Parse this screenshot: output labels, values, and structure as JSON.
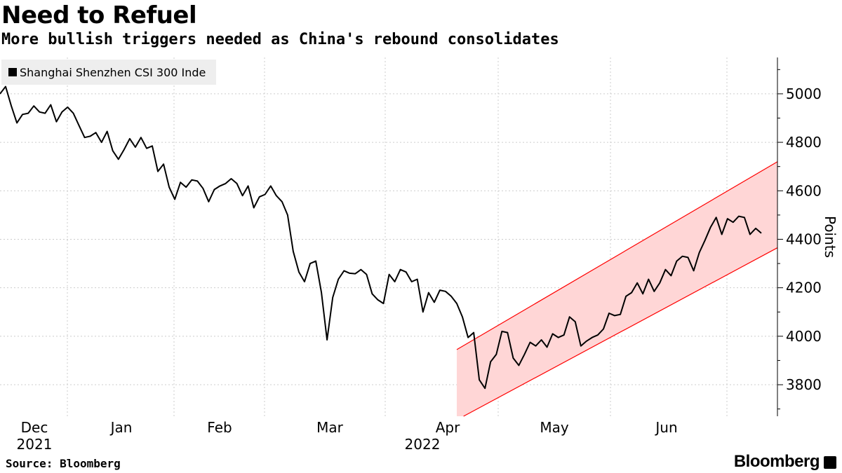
{
  "header": {
    "title": "Need to Refuel",
    "subtitle": "More bullish triggers needed as China's rebound consolidates"
  },
  "footer": {
    "source": "Source: Bloomberg",
    "brand": "Bloomberg"
  },
  "chart_data": {
    "type": "line",
    "title": "Need to Refuel",
    "subtitle": "More bullish triggers needed as China's rebound consolidates",
    "ylabel": "Points",
    "ylim": [
      3670,
      5150
    ],
    "yticks": [
      3800,
      4000,
      4200,
      4400,
      4600,
      4800,
      5000
    ],
    "x_month_labels": [
      {
        "label": "Dec",
        "year": "2021"
      },
      {
        "label": "Jan",
        "year": ""
      },
      {
        "label": "Feb",
        "year": ""
      },
      {
        "label": "Mar",
        "year": ""
      },
      {
        "label": "Apr",
        "year": "2022"
      },
      {
        "label": "May",
        "year": ""
      },
      {
        "label": "Jun",
        "year": ""
      }
    ],
    "legend": {
      "position": "top-left",
      "entries": [
        "Shanghai Shenzhen CSI 300 Inde"
      ]
    },
    "grid": true,
    "series": [
      {
        "name": "Shanghai Shenzhen CSI 300 Inde",
        "color": "#000000",
        "values": [
          5000,
          5030,
          4950,
          4880,
          4915,
          4920,
          4950,
          4925,
          4920,
          4955,
          4885,
          4925,
          4945,
          4920,
          4870,
          4820,
          4825,
          4840,
          4800,
          4845,
          4765,
          4730,
          4770,
          4815,
          4780,
          4820,
          4775,
          4785,
          4680,
          4710,
          4615,
          4565,
          4635,
          4615,
          4645,
          4640,
          4610,
          4555,
          4605,
          4620,
          4630,
          4650,
          4630,
          4580,
          4620,
          4530,
          4575,
          4585,
          4620,
          4580,
          4555,
          4500,
          4350,
          4265,
          4225,
          4300,
          4310,
          4180,
          3985,
          4160,
          4235,
          4270,
          4260,
          4258,
          4275,
          4255,
          4175,
          4150,
          4135,
          4255,
          4225,
          4275,
          4265,
          4225,
          4235,
          4100,
          4180,
          4140,
          4190,
          4185,
          4165,
          4135,
          4080,
          3995,
          4015,
          3820,
          3785,
          3895,
          3925,
          4020,
          4015,
          3910,
          3880,
          3925,
          3975,
          3960,
          3985,
          3955,
          4010,
          3995,
          4005,
          4080,
          4060,
          3960,
          3980,
          3995,
          4005,
          4030,
          4095,
          4085,
          4090,
          4165,
          4180,
          4220,
          4175,
          4235,
          4185,
          4220,
          4275,
          4250,
          4310,
          4330,
          4325,
          4270,
          4345,
          4395,
          4450,
          4490,
          4420,
          4485,
          4470,
          4495,
          4490,
          4420,
          4445,
          4425
        ]
      }
    ],
    "annotations": [
      {
        "type": "trend-channel",
        "color": "#ff0000",
        "fill": "#ffd6d6",
        "upper": [
          3945,
          4720
        ],
        "lower": [
          3655,
          4365
        ]
      }
    ]
  }
}
